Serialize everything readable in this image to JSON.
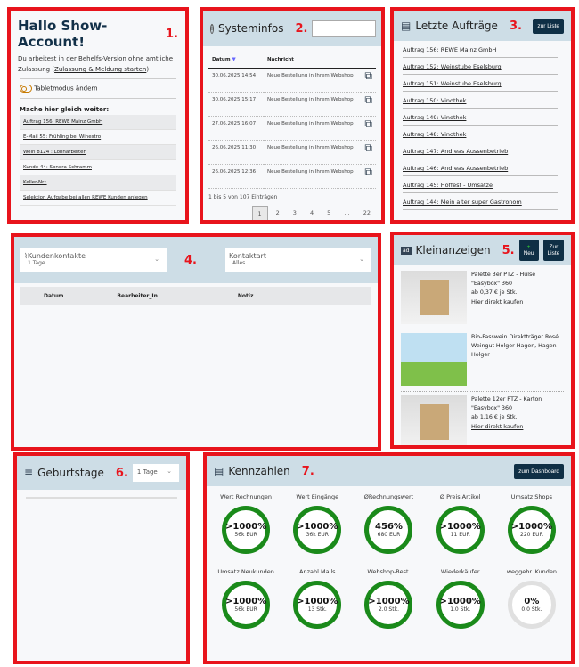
{
  "p1": {
    "title": "Hallo Show-Account!",
    "num": "1.",
    "intro": "Du arbeitest in der Behelfs-Version ohne amtliche Zulassung (",
    "intro_link": "Zulassung & Meldung starten",
    "intro_end": ")",
    "tablet": "Tabletmodus ändern",
    "continue": "Mache hier gleich weiter:",
    "items": [
      "Auftrag 156: REWE Mainz GmbH",
      "E-Mail 55: Frühling bei Winestro",
      "Wein 8124 : Lohnarbeiten",
      "Kunde 44: Sonora Schramm",
      "Keller-Nr.:",
      "Selektion Aufgabe bei allen REWE Kunden anlegen"
    ]
  },
  "p2": {
    "title": "Systeminfos",
    "num": "2.",
    "search_value": "",
    "cols": [
      "Datum",
      "Nachricht"
    ],
    "rows": [
      [
        "30.06.2025 14:54",
        "Neue Bestellung in Ihrem Webshop"
      ],
      [
        "30.06.2025 15:17",
        "Neue Bestellung in Ihrem Webshop"
      ],
      [
        "27.06.2025 16:07",
        "Neue Bestellung in Ihrem Webshop"
      ],
      [
        "26.06.2025 11:30",
        "Neue Bestellung in Ihrem Webshop"
      ],
      [
        "26.06.2025 12:36",
        "Neue Bestellung in Ihrem Webshop"
      ]
    ],
    "info": "1 bis 5 von 107 Einträgen",
    "pages": [
      "1",
      "2",
      "3",
      "4",
      "5",
      "…",
      "22"
    ],
    "current_page": "1"
  },
  "p3": {
    "title": "Letzte Aufträge",
    "num": "3.",
    "button": "zur Liste",
    "items": [
      "Auftrag 156: REWE Mainz GmbH",
      "Auftrag 152: Weinstube Eselsburg",
      "Auftrag 151: Weinstube Eselsburg",
      "Auftrag 150: Vinothek",
      "Auftrag 149: Vinothek",
      "Auftrag 148: Vinothek",
      "Auftrag 147: Andreas Aussenbetrieb",
      "Auftrag 146: Andreas Aussenbetrieb",
      "Auftrag 145: Hoffest - Umsätze",
      "Auftrag 144: Mein alter super Gastronom"
    ]
  },
  "p4": {
    "num": "4.",
    "select1_label": "Kundenkontakte",
    "select1_value": "1 Tage",
    "select2_label": "Kontaktart",
    "select2_value": "Alles",
    "cols": [
      "Datum",
      "Bearbeiter_In",
      "Notiz"
    ]
  },
  "p5": {
    "title": "Kleinanzeigen",
    "num": "5.",
    "new": "Neu",
    "list": "Zur Liste",
    "ads": [
      {
        "title": "Palette 3er PTZ - Hülse \"Easybox\" 360",
        "price": "ab 0,37 € je Stk.",
        "link": "Hier direkt kaufen"
      },
      {
        "title": "Bio-Fasswein Direktträger Rosé Weingut Holger Hagen, Hagen Holger",
        "price": "",
        "link": ""
      },
      {
        "title": "Palette 12er PTZ - Karton \"Easybox\" 360",
        "price": "ab 1,16 € je Stk.",
        "link": "Hier direkt kaufen"
      }
    ]
  },
  "p6": {
    "title": "Geburtstage",
    "num": "6.",
    "select_value": "1 Tage"
  },
  "p7": {
    "title": "Kennzahlen",
    "num": "7.",
    "button": "zum Dashboard",
    "gauges": [
      {
        "label": "Wert Rechnungen",
        "pct": ">1000%",
        "value": "56k EUR",
        "fill": 1,
        "color": "#1a8a1a"
      },
      {
        "label": "Wert Eingänge",
        "pct": ">1000%",
        "value": "36k EUR",
        "fill": 1,
        "color": "#1a8a1a"
      },
      {
        "label": "ØRechnungswert",
        "pct": "456%",
        "value": "680 EUR",
        "fill": 1,
        "color": "#1a8a1a"
      },
      {
        "label": "Ø Preis Artikel",
        "pct": ">1000%",
        "value": "11 EUR",
        "fill": 1,
        "color": "#1a8a1a"
      },
      {
        "label": "Umsatz Shops",
        "pct": ">1000%",
        "value": "220 EUR",
        "fill": 1,
        "color": "#1a8a1a"
      },
      {
        "label": "Umsatz Neukunden",
        "pct": ">1000%",
        "value": "56k EUR",
        "fill": 1,
        "color": "#1a8a1a"
      },
      {
        "label": "Anzahl Mails",
        "pct": ">1000%",
        "value": "13 Stk.",
        "fill": 1,
        "color": "#1a8a1a"
      },
      {
        "label": "Webshop-Best.",
        "pct": ">1000%",
        "value": "2.0 Stk.",
        "fill": 1,
        "color": "#1a8a1a"
      },
      {
        "label": "Wiederkäufer",
        "pct": ">1000%",
        "value": "1.0 Stk.",
        "fill": 1,
        "color": "#1a8a1a"
      },
      {
        "label": "weggebr. Kunden",
        "pct": "0%",
        "value": "0.0 Stk.",
        "fill": 0,
        "color": "#e0e0e0"
      }
    ]
  }
}
